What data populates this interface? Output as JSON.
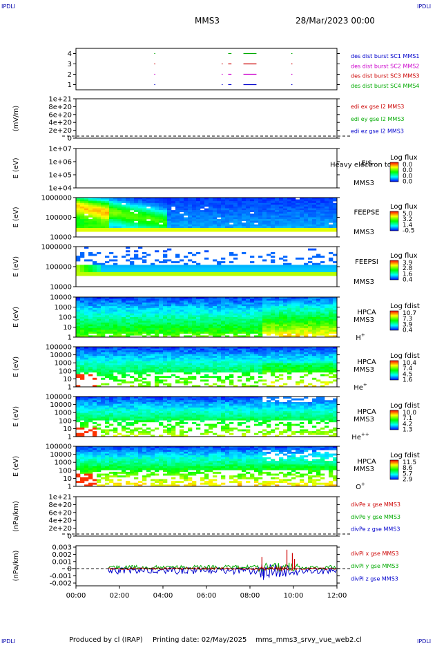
{
  "corner_label": "IPDLI",
  "header": {
    "mission": "MMS3",
    "datetime": "28/Mar/2023 00:00"
  },
  "footer": {
    "produced_by": "Produced by cl (IRAP)",
    "printing_date": "Printing date: 02/May/2025",
    "script": "mms_mms3_srvy_vue_web2.cl"
  },
  "chart_data": {
    "type": "multi-panel time series",
    "x_range": [
      "00:00",
      "12:00"
    ],
    "x_ticks": [
      "00:00",
      "02:00",
      "04:00",
      "06:00",
      "08:00",
      "10:00",
      "12:00"
    ],
    "panels": [
      {
        "id": "burst",
        "type": "timeline",
        "ylabel": "",
        "ylim": [
          0.5,
          4.5
        ],
        "yticks": [
          "1",
          "2",
          "3",
          "4"
        ],
        "legend": [
          {
            "text": "des dist burst SC1 MMS1",
            "color": "#0000cc"
          },
          {
            "text": "des dist burst SC2 MMS2",
            "color": "#cc00cc"
          },
          {
            "text": "des dist burst SC3 MMS3",
            "color": "#cc0000"
          },
          {
            "text": "des dist burst SC4 MMS4",
            "color": "#00aa00"
          }
        ],
        "segments": [
          {
            "level": 4,
            "color": "#00aa00",
            "intervals": [
              [
                3.6,
                3.62
              ],
              [
                7.0,
                7.15
              ],
              [
                7.7,
                8.3
              ],
              [
                9.9,
                9.95
              ]
            ]
          },
          {
            "level": 3,
            "color": "#cc0000",
            "intervals": [
              [
                3.6,
                3.62
              ],
              [
                6.7,
                6.72
              ],
              [
                7.0,
                7.15
              ],
              [
                7.7,
                8.3
              ],
              [
                9.9,
                9.95
              ]
            ]
          },
          {
            "level": 2,
            "color": "#cc00cc",
            "intervals": [
              [
                3.6,
                3.62
              ],
              [
                6.7,
                6.72
              ],
              [
                7.0,
                7.15
              ],
              [
                7.7,
                8.3
              ],
              [
                9.9,
                9.95
              ]
            ]
          },
          {
            "level": 1,
            "color": "#0000cc",
            "intervals": [
              [
                3.6,
                3.62
              ],
              [
                6.7,
                6.72
              ],
              [
                7.0,
                7.15
              ],
              [
                7.7,
                8.3
              ],
              [
                9.9,
                9.95
              ]
            ]
          }
        ]
      },
      {
        "id": "edi",
        "type": "line",
        "ylabel": "(mV/m)",
        "yticks": [
          "1e+21",
          "8e+20",
          "6e+20",
          "4e+20",
          "2e+20",
          "0"
        ],
        "legend": [
          {
            "text": "edi ex gse l2 MMS3",
            "color": "#cc0000"
          },
          {
            "text": "edi ey gse l2 MMS3",
            "color": "#00aa00"
          },
          {
            "text": "edi ez gse l2 MMS3",
            "color": "#0000cc"
          }
        ]
      },
      {
        "id": "eis",
        "type": "heatmap",
        "ylabel": "E (eV)",
        "yticks": [
          "1e+07",
          "1e+06",
          "1e+05",
          "1e+04"
        ],
        "labels": [
          "EIS",
          "MMS3"
        ],
        "overlay_text": "Heavy electron to",
        "colorbar_title": "Log flux",
        "colorbar_ticks": [
          "0.0",
          "0.0",
          "0.0",
          "0.0"
        ]
      },
      {
        "id": "feepse",
        "type": "heatmap",
        "ylabel": "E (eV)",
        "yticks": [
          "1000000",
          "100000",
          "10000"
        ],
        "labels": [
          "FEEPSE",
          "MMS3"
        ],
        "colorbar_title": "Log flux",
        "colorbar_ticks": [
          "5.0",
          "3.2",
          "1.4",
          "-0.5"
        ]
      },
      {
        "id": "feepsi",
        "type": "heatmap",
        "ylabel": "E (eV)",
        "yticks": [
          "1000000",
          "100000",
          "10000"
        ],
        "labels": [
          "FEEPSI",
          "MMS3"
        ],
        "colorbar_title": "Log flux",
        "colorbar_ticks": [
          "3.9",
          "2.8",
          "1.6",
          "0.4"
        ]
      },
      {
        "id": "hpca_h",
        "type": "heatmap",
        "ylabel": "E (eV)",
        "yticks": [
          "10000",
          "1000",
          "100",
          "10",
          "1"
        ],
        "labels": [
          "HPCA",
          "MMS3"
        ],
        "species": "H",
        "species_sup": "+",
        "colorbar_title": "Log fdist",
        "colorbar_ticks": [
          "10.7",
          "7.3",
          "3.9",
          "0.4"
        ]
      },
      {
        "id": "hpca_he",
        "type": "heatmap",
        "ylabel": "E (eV)",
        "yticks": [
          "100000",
          "10000",
          "1000",
          "100",
          "10",
          "1"
        ],
        "labels": [
          "HPCA",
          "MMS3"
        ],
        "species": "He",
        "species_sup": "+",
        "colorbar_title": "Log fdist",
        "colorbar_ticks": [
          "10.4",
          "7.4",
          "4.5",
          "1.6"
        ]
      },
      {
        "id": "hpca_hepp",
        "type": "heatmap",
        "ylabel": "E (eV)",
        "yticks": [
          "100000",
          "10000",
          "1000",
          "100",
          "10",
          "1"
        ],
        "labels": [
          "HPCA",
          "MMS3"
        ],
        "species": "He",
        "species_sup": "++",
        "colorbar_title": "Log fdist",
        "colorbar_ticks": [
          "10.0",
          "7.1",
          "4.2",
          "1.3"
        ]
      },
      {
        "id": "hpca_o",
        "type": "heatmap",
        "ylabel": "E (eV)",
        "yticks": [
          "100000",
          "10000",
          "1000",
          "100",
          "10",
          "1"
        ],
        "labels": [
          "HPCA",
          "MMS3"
        ],
        "species": "O",
        "species_sup": "+",
        "colorbar_title": "Log fdist",
        "colorbar_ticks": [
          "11.5",
          "8.6",
          "5.7",
          "2.9"
        ]
      },
      {
        "id": "divpe",
        "type": "line",
        "ylabel": "(nPa/km)",
        "yticks": [
          "1e+21",
          "8e+20",
          "6e+20",
          "4e+20",
          "2e+20",
          "0"
        ],
        "legend": [
          {
            "text": "divPe x gse MMS3",
            "color": "#cc0000"
          },
          {
            "text": "divPe y gse MMS3",
            "color": "#00aa00"
          },
          {
            "text": "divPe z gse MMS3",
            "color": "#0000cc"
          }
        ]
      },
      {
        "id": "divpi",
        "type": "line",
        "ylabel": "(nPa/km)",
        "ylim": [
          -0.0023,
          0.0032
        ],
        "yticks": [
          "0.003",
          "0.002",
          "0.001",
          "0",
          "-0.001",
          "-0.002"
        ],
        "legend": [
          {
            "text": "divPi x gse MMS3",
            "color": "#cc0000"
          },
          {
            "text": "divPi y gse MMS3",
            "color": "#00aa00"
          },
          {
            "text": "divPi z gse MMS3",
            "color": "#0000cc"
          }
        ],
        "data_start_hour": 1.5,
        "spikes": [
          {
            "t": 8.55,
            "v": 0.0018,
            "color": "#cc0000"
          },
          {
            "t": 8.62,
            "v": -0.0017,
            "color": "#0000cc"
          },
          {
            "t": 9.7,
            "v": 0.0029,
            "color": "#cc0000"
          },
          {
            "t": 9.8,
            "v": 0.0009,
            "color": "#00aa00"
          },
          {
            "t": 9.95,
            "v": 0.0024,
            "color": "#cc0000"
          },
          {
            "t": 10.05,
            "v": 0.0015,
            "color": "#cc0000"
          }
        ]
      }
    ]
  }
}
